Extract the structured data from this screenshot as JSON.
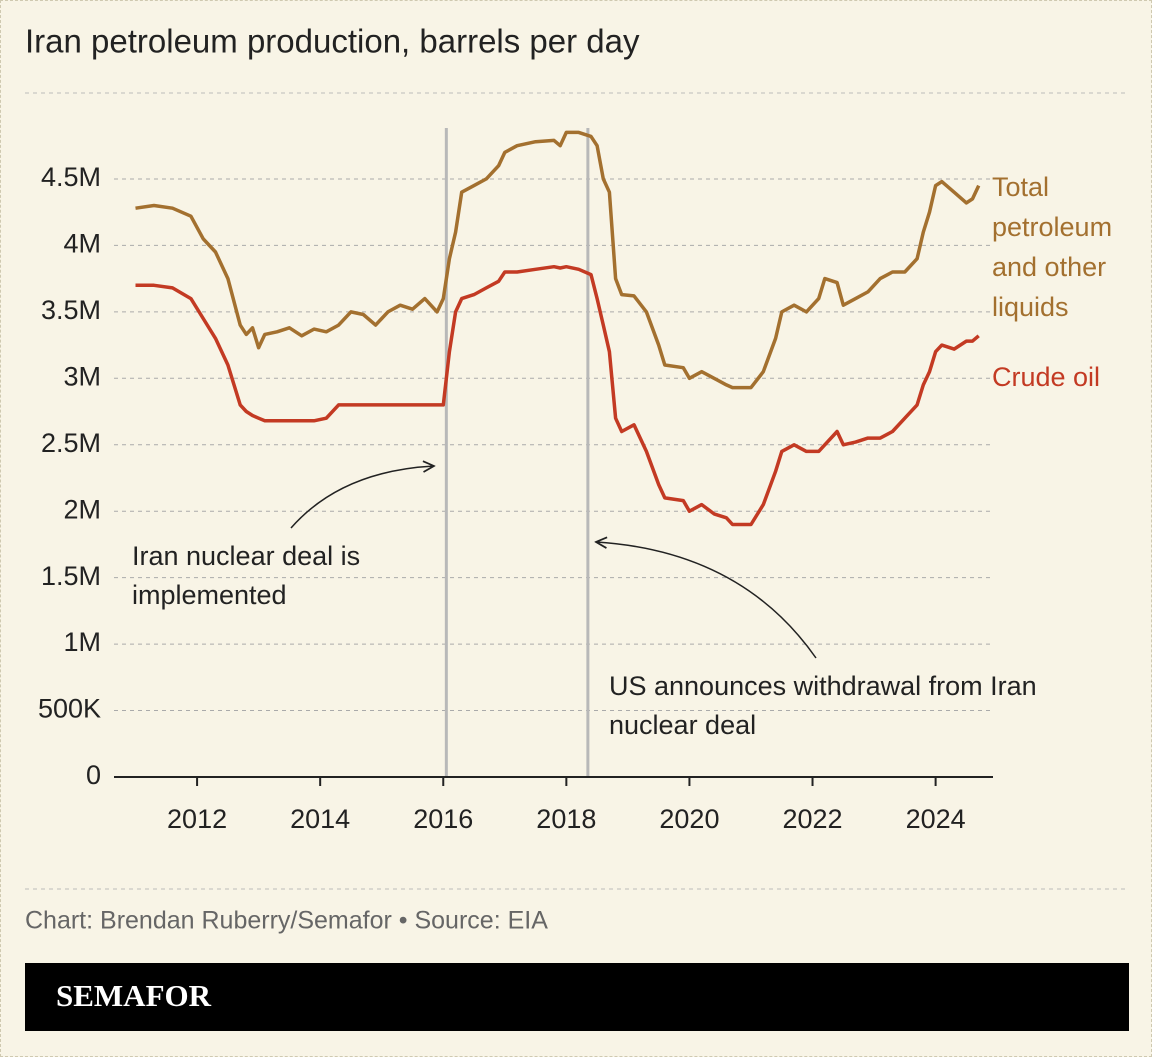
{
  "chart_data": {
    "type": "line",
    "title": "Iran petroleum production, barrels per day",
    "source": "Chart: Brendan Ruberry/Semafor • Source: EIA",
    "brand": "SEMAFOR",
    "x": [
      2011.0,
      2011.3,
      2011.6,
      2011.9,
      2012.1,
      2012.3,
      2012.5,
      2012.7,
      2012.8,
      2012.9,
      2013.0,
      2013.1,
      2013.3,
      2013.5,
      2013.7,
      2013.9,
      2014.1,
      2014.3,
      2014.5,
      2014.7,
      2014.9,
      2015.1,
      2015.3,
      2015.5,
      2015.7,
      2015.9,
      2016.0,
      2016.1,
      2016.2,
      2016.3,
      2016.5,
      2016.7,
      2016.9,
      2017.0,
      2017.2,
      2017.5,
      2017.8,
      2017.9,
      2018.0,
      2018.2,
      2018.4,
      2018.5,
      2018.6,
      2018.7,
      2018.8,
      2018.9,
      2019.1,
      2019.3,
      2019.5,
      2019.6,
      2019.9,
      2020.0,
      2020.2,
      2020.4,
      2020.6,
      2020.7,
      2021.0,
      2021.2,
      2021.4,
      2021.5,
      2021.7,
      2021.9,
      2022.1,
      2022.2,
      2022.4,
      2022.5,
      2022.7,
      2022.9,
      2023.1,
      2023.3,
      2023.5,
      2023.7,
      2023.8,
      2023.9,
      2024.0,
      2024.1,
      2024.3,
      2024.5,
      2024.6,
      2024.7
    ],
    "series": [
      {
        "name": "Total petroleum and other liquids",
        "color": "#a3702f",
        "values": [
          4280000,
          4300000,
          4280000,
          4220000,
          4050000,
          3950000,
          3750000,
          3400000,
          3330000,
          3380000,
          3230000,
          3330000,
          3350000,
          3380000,
          3320000,
          3370000,
          3350000,
          3400000,
          3500000,
          3480000,
          3400000,
          3500000,
          3550000,
          3520000,
          3600000,
          3500000,
          3600000,
          3900000,
          4100000,
          4400000,
          4450000,
          4500000,
          4600000,
          4700000,
          4750000,
          4780000,
          4790000,
          4750000,
          4850000,
          4850000,
          4820000,
          4750000,
          4500000,
          4400000,
          3750000,
          3630000,
          3620000,
          3500000,
          3250000,
          3100000,
          3080000,
          3000000,
          3050000,
          3000000,
          2950000,
          2930000,
          2930000,
          3050000,
          3300000,
          3500000,
          3550000,
          3500000,
          3600000,
          3750000,
          3720000,
          3550000,
          3600000,
          3650000,
          3750000,
          3800000,
          3800000,
          3900000,
          4100000,
          4250000,
          4450000,
          4480000,
          4400000,
          4320000,
          4350000,
          4450000
        ]
      },
      {
        "name": "Crude oil",
        "color": "#c33a23",
        "values": [
          3700000,
          3700000,
          3680000,
          3600000,
          3450000,
          3300000,
          3100000,
          2800000,
          2750000,
          2720000,
          2700000,
          2680000,
          2680000,
          2680000,
          2680000,
          2680000,
          2700000,
          2800000,
          2800000,
          2800000,
          2800000,
          2800000,
          2800000,
          2800000,
          2800000,
          2800000,
          2800000,
          3200000,
          3500000,
          3600000,
          3630000,
          3680000,
          3730000,
          3800000,
          3800000,
          3820000,
          3840000,
          3830000,
          3840000,
          3820000,
          3780000,
          3600000,
          3400000,
          3200000,
          2700000,
          2600000,
          2650000,
          2450000,
          2200000,
          2100000,
          2080000,
          2000000,
          2050000,
          1980000,
          1950000,
          1900000,
          1900000,
          2050000,
          2300000,
          2450000,
          2500000,
          2450000,
          2450000,
          2500000,
          2600000,
          2500000,
          2520000,
          2550000,
          2550000,
          2600000,
          2700000,
          2800000,
          2950000,
          3050000,
          3200000,
          3250000,
          3220000,
          3280000,
          3280000,
          3320000
        ]
      }
    ],
    "xlim": [
      2010.65,
      2024.9
    ],
    "xticks": [
      2012,
      2014,
      2016,
      2018,
      2020,
      2022,
      2024
    ],
    "ylim": [
      0,
      5000000
    ],
    "yticks": [
      0,
      {
        "value": 500000,
        "label": "500K"
      },
      {
        "value": 1000000,
        "label": "1M"
      },
      {
        "value": 1500000,
        "label": "1.5M"
      },
      {
        "value": 2000000,
        "label": "2M"
      },
      {
        "value": 2500000,
        "label": "2.5M"
      },
      {
        "value": 3000000,
        "label": "3M"
      },
      {
        "value": 3500000,
        "label": "3.5M"
      },
      {
        "value": 4000000,
        "label": "4M"
      },
      {
        "value": 4500000,
        "label": "4.5M"
      }
    ],
    "grid": true,
    "annotations": [
      {
        "text": "Iran nuclear deal is implemented",
        "x": 2016.05
      },
      {
        "text": "US announces withdrawal from Iran nuclear deal",
        "x": 2018.35
      }
    ]
  }
}
